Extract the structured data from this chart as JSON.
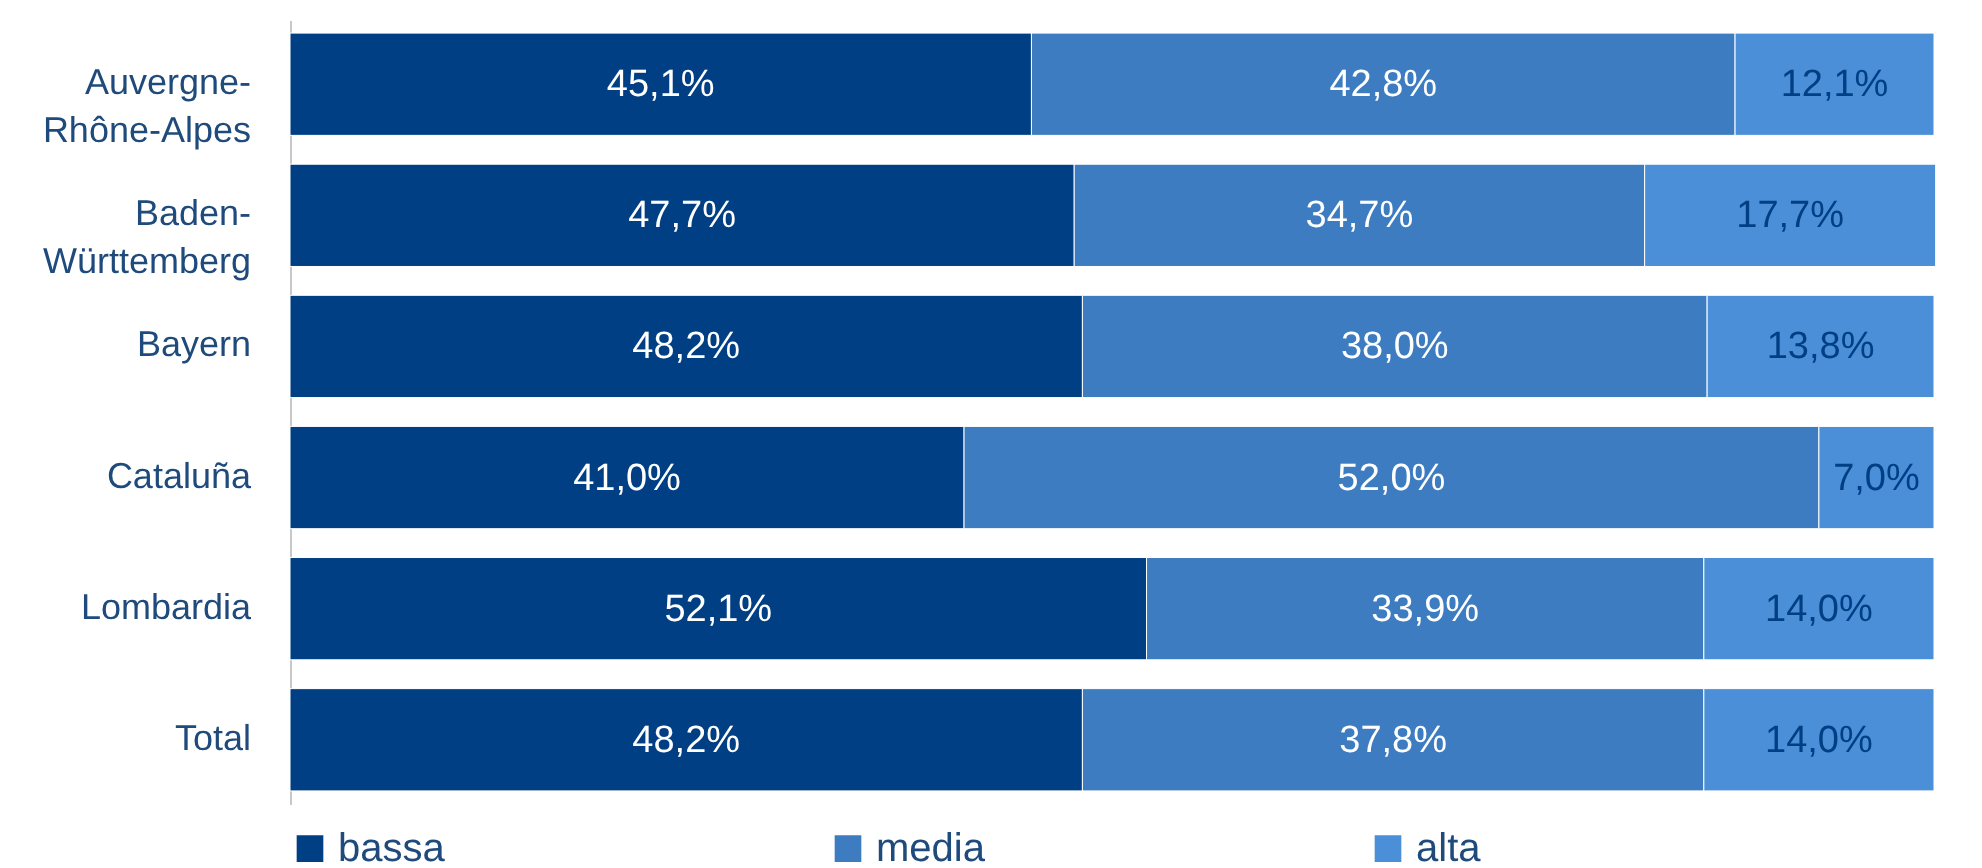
{
  "chart_data": {
    "type": "bar",
    "orientation": "horizontal",
    "stacked": true,
    "tick_labels": "y",
    "xlim": [
      0,
      100
    ],
    "legend": "bottom",
    "grid": false,
    "categories": [
      "Auvergne-Rhône-Alpes",
      "Baden-Württemberg",
      "Bayern",
      "Cataluña",
      "Lombardia",
      "Total"
    ],
    "series": [
      {
        "name": "bassa",
        "color": "#003f83",
        "values": [
          45.1,
          47.7,
          48.2,
          41.0,
          52.1,
          48.2
        ],
        "value_labels": [
          "45,1%",
          "47,7%",
          "48,2%",
          "41,0%",
          "52,1%",
          "48,2%"
        ]
      },
      {
        "name": "media",
        "color": "#3d7cc0",
        "values": [
          42.8,
          34.7,
          38.0,
          52.0,
          33.9,
          37.8
        ],
        "value_labels": [
          "42,8%",
          "34,7%",
          "38,0%",
          "52,0%",
          "33,9%",
          "37,8%"
        ]
      },
      {
        "name": "alta",
        "color": "#4a8fd8",
        "values": [
          12.1,
          17.7,
          13.8,
          7.0,
          14.0,
          14.0
        ],
        "value_labels": [
          "12,1%",
          "17,7%",
          "13,8%",
          "7,0%",
          "14,0%",
          "14,0%"
        ]
      }
    ]
  }
}
